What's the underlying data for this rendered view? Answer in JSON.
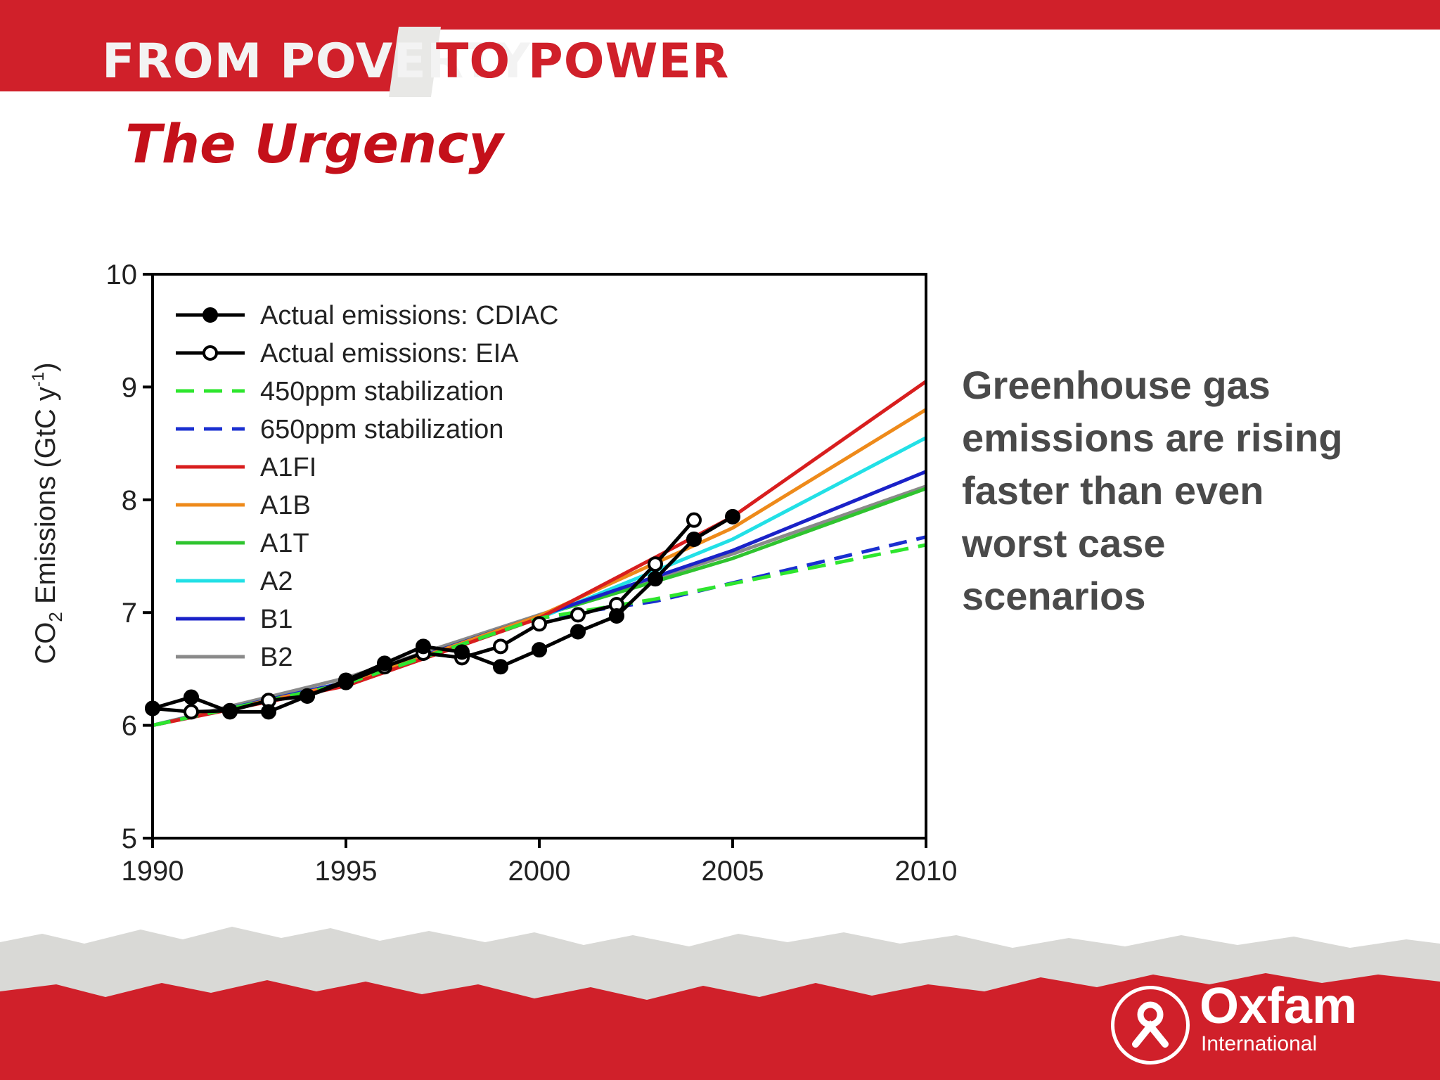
{
  "header": {
    "banner_part1": "FROM POVERTY",
    "banner_part2": "TO POWER",
    "title": "The Urgency"
  },
  "side_text": "Greenhouse gas emissions are rising faster than even worst case scenarios",
  "branding": {
    "name": "Oxfam",
    "subtitle": "International"
  },
  "colors": {
    "brand_red": "#d0202a",
    "title_red": "#c4101a",
    "text_gray": "#4a4a4a"
  },
  "chart_data": {
    "type": "line",
    "title": "",
    "xlabel": "",
    "ylabel_prefix": "CO",
    "ylabel_sub": "2",
    "ylabel_mid": " Emissions (GtC y",
    "ylabel_sup": "-1",
    "ylabel_end": ")",
    "xlim": [
      1990,
      2010
    ],
    "ylim": [
      5,
      10
    ],
    "x_ticks": [
      "1990",
      "1995",
      "2000",
      "2005",
      "2010"
    ],
    "y_ticks": [
      "5",
      "6",
      "7",
      "8",
      "9",
      "10"
    ],
    "grid": false,
    "legend_position": "top-left",
    "series": [
      {
        "name": "Actual emissions: CDIAC",
        "color": "#000000",
        "style": "marker-filled",
        "x": [
          1990,
          1991,
          1992,
          1993,
          1994,
          1995,
          1996,
          1997,
          1998,
          1999,
          2000,
          2001,
          2002,
          2003,
          2004,
          2005
        ],
        "y": [
          6.15,
          6.25,
          6.12,
          6.12,
          6.26,
          6.4,
          6.55,
          6.7,
          6.65,
          6.52,
          6.67,
          6.83,
          6.97,
          7.3,
          7.65,
          7.85
        ]
      },
      {
        "name": "Actual emissions: EIA",
        "color": "#000000",
        "style": "marker-open",
        "x": [
          1990,
          1991,
          1992,
          1993,
          1994,
          1995,
          1996,
          1997,
          1998,
          1999,
          2000,
          2001,
          2002,
          2003,
          2004
        ],
        "y": [
          6.15,
          6.12,
          6.13,
          6.22,
          6.26,
          6.38,
          6.52,
          6.64,
          6.6,
          6.7,
          6.9,
          6.98,
          7.07,
          7.43,
          7.82
        ]
      },
      {
        "name": "450ppm stabilization",
        "color": "#2ee62e",
        "style": "dashed",
        "x": [
          1990,
          1995,
          2000,
          2003,
          2010
        ],
        "y": [
          6.0,
          6.37,
          6.95,
          7.12,
          7.6
        ]
      },
      {
        "name": "650ppm stabilization",
        "color": "#1a2fd0",
        "style": "dashed",
        "x": [
          1990,
          1995,
          2000,
          2003,
          2010
        ],
        "y": [
          6.0,
          6.37,
          6.95,
          7.1,
          7.67
        ]
      },
      {
        "name": "A1FI",
        "color": "#d81e1e",
        "style": "solid",
        "x": [
          1990,
          1995,
          2000,
          2005,
          2010
        ],
        "y": [
          6.0,
          6.35,
          6.95,
          7.85,
          9.05
        ]
      },
      {
        "name": "A1B",
        "color": "#ee8a1a",
        "style": "solid",
        "x": [
          1990,
          1995,
          2000,
          2005,
          2010
        ],
        "y": [
          6.0,
          6.37,
          6.97,
          7.75,
          8.8
        ]
      },
      {
        "name": "A1T",
        "color": "#2fc42f",
        "style": "solid",
        "x": [
          1990,
          1995,
          2000,
          2005,
          2010
        ],
        "y": [
          6.0,
          6.38,
          6.97,
          7.48,
          8.1
        ]
      },
      {
        "name": "A2",
        "color": "#22e0e6",
        "style": "solid",
        "x": [
          1990,
          1995,
          2000,
          2005,
          2010
        ],
        "y": [
          6.0,
          6.38,
          6.95,
          7.65,
          8.55
        ]
      },
      {
        "name": "B1",
        "color": "#1a22c8",
        "style": "solid",
        "x": [
          1990,
          1995,
          2000,
          2005,
          2010
        ],
        "y": [
          6.0,
          6.38,
          6.97,
          7.55,
          8.25
        ]
      },
      {
        "name": "B2",
        "color": "#8a8a8a",
        "style": "solid",
        "x": [
          1990,
          1995,
          2000,
          2005,
          2010
        ],
        "y": [
          6.0,
          6.42,
          6.98,
          7.52,
          8.12
        ]
      }
    ]
  }
}
